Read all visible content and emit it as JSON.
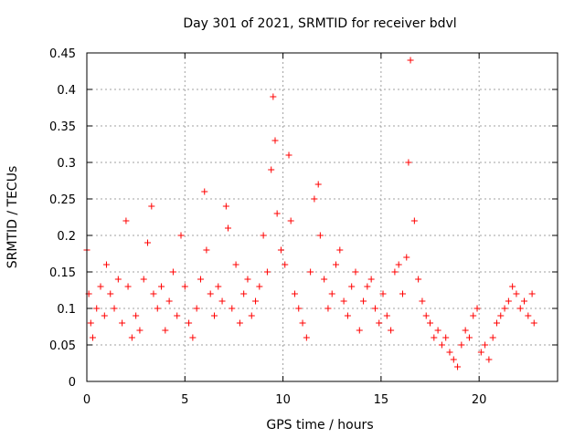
{
  "chart_data": {
    "type": "scatter",
    "title": "Day 301 of 2021, SRMTID for receiver bdvl",
    "xlabel": "GPS time / hours",
    "ylabel": "SRMTID / TECUs",
    "xlim": [
      0,
      24
    ],
    "ylim": [
      0,
      0.45
    ],
    "x_ticks": [
      0,
      5,
      10,
      15,
      20
    ],
    "x_tick_labels": [
      "0",
      "5",
      "10",
      "15",
      "20"
    ],
    "y_ticks": [
      0,
      0.05,
      0.1,
      0.15,
      0.2,
      0.25,
      0.3,
      0.35,
      0.4,
      0.45
    ],
    "y_tick_labels": [
      "0",
      "0.05",
      "0.1",
      "0.15",
      "0.2",
      "0.25",
      "0.3",
      "0.35",
      "0.4",
      "0.45"
    ],
    "grid": true,
    "marker": "+",
    "color": "#ff0000",
    "series": [
      {
        "name": "SRMTID",
        "x": [
          0.0,
          0.1,
          0.2,
          0.3,
          0.5,
          0.7,
          0.9,
          1.0,
          1.2,
          1.4,
          1.6,
          1.8,
          2.0,
          2.1,
          2.3,
          2.5,
          2.7,
          2.9,
          3.1,
          3.3,
          3.4,
          3.6,
          3.8,
          4.0,
          4.2,
          4.4,
          4.6,
          4.8,
          5.0,
          5.2,
          5.4,
          5.6,
          5.8,
          6.0,
          6.1,
          6.3,
          6.5,
          6.7,
          6.9,
          7.1,
          7.2,
          7.4,
          7.6,
          7.8,
          8.0,
          8.2,
          8.4,
          8.6,
          8.8,
          9.0,
          9.2,
          9.4,
          9.5,
          9.6,
          9.7,
          9.9,
          10.1,
          10.3,
          10.4,
          10.6,
          10.8,
          11.0,
          11.2,
          11.4,
          11.6,
          11.8,
          11.9,
          12.1,
          12.3,
          12.5,
          12.7,
          12.9,
          13.1,
          13.3,
          13.5,
          13.7,
          13.9,
          14.1,
          14.3,
          14.5,
          14.7,
          14.9,
          15.1,
          15.3,
          15.5,
          15.7,
          15.9,
          16.1,
          16.3,
          16.4,
          16.5,
          16.7,
          16.9,
          17.1,
          17.3,
          17.5,
          17.7,
          17.9,
          18.1,
          18.3,
          18.5,
          18.7,
          18.9,
          19.1,
          19.3,
          19.5,
          19.7,
          19.9,
          20.1,
          20.3,
          20.5,
          20.7,
          20.9,
          21.1,
          21.3,
          21.5,
          21.7,
          21.9,
          22.1,
          22.3,
          22.5,
          22.7,
          22.8
        ],
        "y": [
          0.18,
          0.12,
          0.08,
          0.06,
          0.1,
          0.13,
          0.09,
          0.16,
          0.12,
          0.1,
          0.14,
          0.08,
          0.22,
          0.13,
          0.06,
          0.09,
          0.07,
          0.14,
          0.19,
          0.24,
          0.12,
          0.1,
          0.13,
          0.07,
          0.11,
          0.15,
          0.09,
          0.2,
          0.13,
          0.08,
          0.06,
          0.1,
          0.14,
          0.26,
          0.18,
          0.12,
          0.09,
          0.13,
          0.11,
          0.24,
          0.21,
          0.1,
          0.16,
          0.08,
          0.12,
          0.14,
          0.09,
          0.11,
          0.13,
          0.2,
          0.15,
          0.29,
          0.39,
          0.33,
          0.23,
          0.18,
          0.16,
          0.31,
          0.22,
          0.12,
          0.1,
          0.08,
          0.06,
          0.15,
          0.25,
          0.27,
          0.2,
          0.14,
          0.1,
          0.12,
          0.16,
          0.18,
          0.11,
          0.09,
          0.13,
          0.15,
          0.07,
          0.11,
          0.13,
          0.14,
          0.1,
          0.08,
          0.12,
          0.09,
          0.07,
          0.15,
          0.16,
          0.12,
          0.17,
          0.3,
          0.44,
          0.22,
          0.14,
          0.11,
          0.09,
          0.08,
          0.06,
          0.07,
          0.05,
          0.06,
          0.04,
          0.03,
          0.02,
          0.05,
          0.07,
          0.06,
          0.09,
          0.1,
          0.04,
          0.05,
          0.03,
          0.06,
          0.08,
          0.09,
          0.1,
          0.11,
          0.13,
          0.12,
          0.1,
          0.11,
          0.09,
          0.12,
          0.08
        ]
      }
    ]
  }
}
